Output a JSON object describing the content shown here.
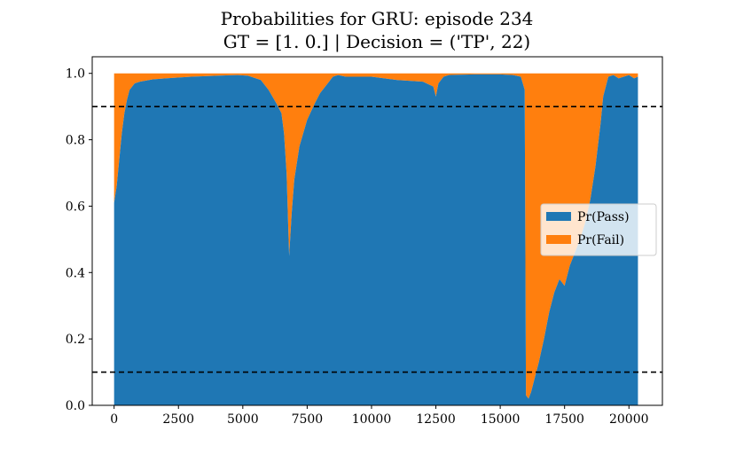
{
  "chart_data": {
    "type": "area",
    "title_line1": "Probabilities for GRU: episode 234",
    "title_line2": "GT = [1. 0.] | Decision = ('TP', 22)",
    "xlabel": "",
    "ylabel": "",
    "xlim": [
      -850,
      21300
    ],
    "ylim": [
      0,
      1.05
    ],
    "xticks": [
      0,
      2500,
      5000,
      7500,
      10000,
      12500,
      15000,
      17500,
      20000
    ],
    "xtick_labels": [
      "0",
      "2500",
      "5000",
      "7500",
      "10000",
      "12500",
      "15000",
      "17500",
      "20000"
    ],
    "yticks": [
      0,
      0.2,
      0.4,
      0.6,
      0.8,
      1.0
    ],
    "ytick_labels": [
      "0.0",
      "0.2",
      "0.4",
      "0.6",
      "0.8",
      "1.0"
    ],
    "thresholds": [
      0.9,
      0.1
    ],
    "legend_position": "center-right",
    "series": [
      {
        "name": "Pr(Pass)",
        "color": "#1f77b4",
        "stack": "bottom"
      },
      {
        "name": "Pr(Fail)",
        "color": "#ff7f0e",
        "stack": "top"
      }
    ],
    "x": [
      0,
      100,
      200,
      300,
      400,
      500,
      600,
      800,
      1000,
      1500,
      2000,
      3000,
      4000,
      4800,
      5200,
      5700,
      6000,
      6300,
      6500,
      6600,
      6700,
      6800,
      6900,
      7000,
      7200,
      7500,
      7800,
      8000,
      8300,
      8500,
      8700,
      9000,
      10000,
      11000,
      12000,
      12400,
      12500,
      12600,
      12800,
      13000,
      14000,
      15000,
      15500,
      15800,
      15950,
      16000,
      16100,
      16200,
      16300,
      16500,
      16700,
      16900,
      17100,
      17300,
      17500,
      17700,
      17900,
      18100,
      18300,
      18500,
      18700,
      18900,
      19000,
      19200,
      19400,
      19600,
      19800,
      20000,
      20200,
      20350
    ],
    "pass": [
      0.61,
      0.66,
      0.74,
      0.82,
      0.88,
      0.92,
      0.95,
      0.97,
      0.975,
      0.982,
      0.985,
      0.99,
      0.993,
      0.995,
      0.993,
      0.98,
      0.95,
      0.91,
      0.88,
      0.82,
      0.7,
      0.45,
      0.58,
      0.68,
      0.78,
      0.86,
      0.91,
      0.94,
      0.97,
      0.99,
      0.995,
      0.99,
      0.99,
      0.98,
      0.975,
      0.96,
      0.93,
      0.97,
      0.99,
      0.995,
      0.997,
      0.997,
      0.995,
      0.99,
      0.95,
      0.03,
      0.02,
      0.04,
      0.07,
      0.13,
      0.2,
      0.28,
      0.34,
      0.38,
      0.36,
      0.42,
      0.46,
      0.5,
      0.55,
      0.62,
      0.72,
      0.85,
      0.93,
      0.99,
      0.995,
      0.985,
      0.99,
      0.995,
      0.985,
      0.99
    ]
  }
}
